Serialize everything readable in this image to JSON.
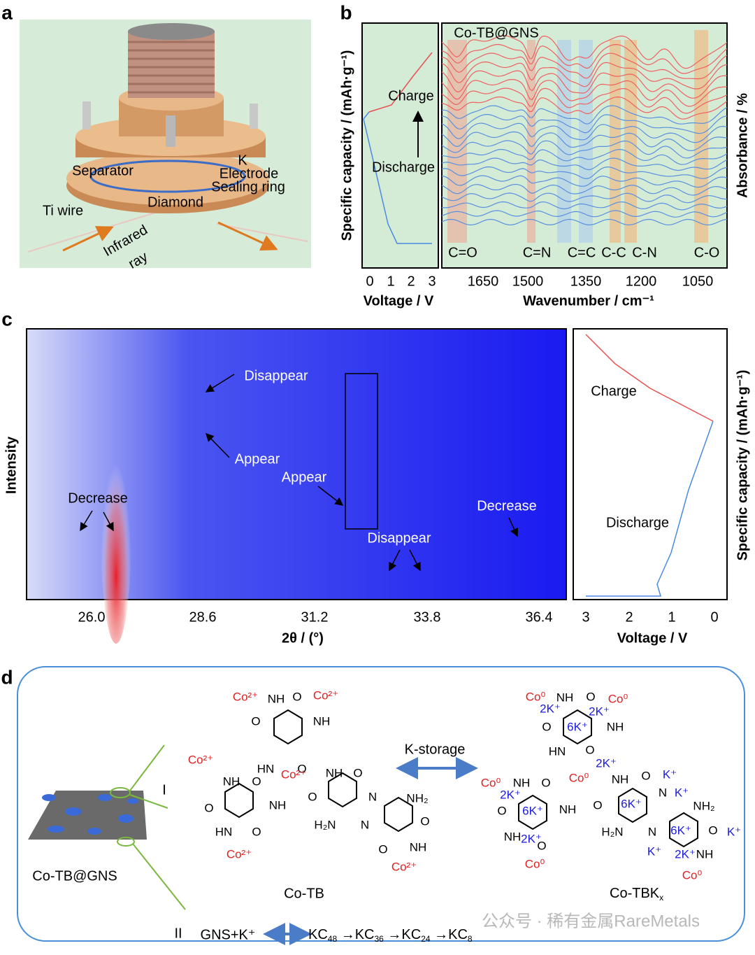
{
  "panel_labels": [
    "a",
    "b",
    "c",
    "d"
  ],
  "panel_a": {
    "labels": [
      "Separator",
      "K",
      "Electrode",
      "Sealing ring",
      "Diamond",
      "Ti  wire",
      "Infrared",
      "ray"
    ]
  },
  "panel_b": {
    "inset_text": "Co-TB@GNS",
    "left_y_label": "Specific capacity / (mAh·g⁻¹)",
    "right_y_label": "Absorbance / %",
    "left_x_label": "Voltage / V",
    "right_x_label": "Wavenumber / cm⁻¹",
    "left_ticks": [
      "0",
      "1",
      "2",
      "3"
    ],
    "right_ticks": [
      "1650",
      "1500",
      "1350",
      "1200",
      "1050"
    ],
    "charge": "Charge",
    "discharge": "Discharge",
    "bands": [
      "C=O",
      "C=N",
      "C=C",
      "C-C",
      "C-N",
      "C-O"
    ]
  },
  "panel_c": {
    "y_label": "Intensity",
    "x_label": "2θ / (°)",
    "x_ticks": [
      "26.0",
      "28.6",
      "31.2",
      "33.8",
      "36.4"
    ],
    "annotations": [
      "Disappear",
      "Appear",
      "Appear",
      "Decrease",
      "Decrease",
      "Disappear"
    ],
    "right_x_ticks": [
      "3",
      "2",
      "1",
      "0"
    ],
    "right_x_label": "Voltage / V",
    "right_y_label": "Specific capacity / (mAh·g⁻¹)",
    "charge": "Charge",
    "discharge": "Discharge"
  },
  "panel_d": {
    "left_label": "Co-TB@GNS",
    "arrow_label": "K-storage",
    "route_I": "I",
    "route_II": "II",
    "reaction_left": "GNS+K⁺",
    "reaction_right_parts": [
      "KC",
      "48",
      " →KC",
      "36",
      " →KC",
      "24",
      " →KC",
      "8"
    ],
    "product_left": "Co-TB",
    "product_right_parts": [
      "Co-TBK",
      "x"
    ],
    "atoms_left": [
      "Co²⁺",
      "NH",
      "O",
      "Co²⁺",
      "O",
      "NH",
      "HN",
      "O",
      "Co²⁺",
      "NH",
      "O",
      "Co²⁺",
      "NH",
      "O",
      "O",
      "NH",
      "O",
      "N",
      "NH₂",
      "HN",
      "O",
      "H₂N",
      "N",
      "O",
      "NH",
      "O",
      "Co²⁺",
      "Co²⁺"
    ],
    "atoms_right": [
      "Co⁰",
      "NH",
      "O",
      "Co⁰",
      "2K⁺",
      "2K⁺",
      "O",
      "6K⁺",
      "NH",
      "HN",
      "2K⁺",
      "O",
      "Co⁰",
      "NH",
      "O",
      "K⁺",
      "Co⁰",
      "NH",
      "O",
      "2K⁺",
      "K⁺",
      "N",
      "O",
      "6K⁺",
      "NH",
      "O",
      "6K⁺",
      "NH₂",
      "NH",
      "2K⁺",
      "H₂N",
      "N",
      "6K⁺",
      "O",
      "K⁺",
      "K⁺",
      "O",
      "2K⁺",
      "NH",
      "Co⁰",
      "Co⁰"
    ]
  },
  "watermark": "公众号 · 稀有金属RareMetals"
}
